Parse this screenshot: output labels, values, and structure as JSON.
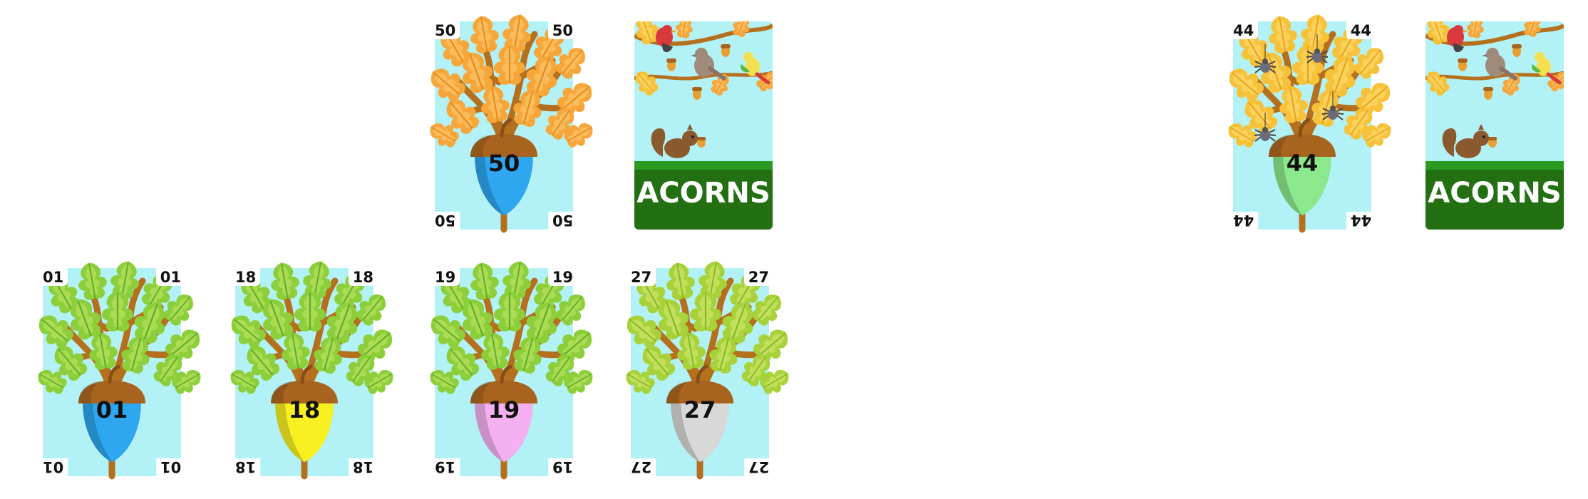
{
  "cards": [
    {
      "id": "50",
      "label": "50",
      "cap_color": "#2ea6f0",
      "leaf": "orange"
    },
    {
      "id": "44",
      "label": "44",
      "cap_color": "#8ce88c",
      "leaf": "gold"
    },
    {
      "id": "01",
      "label": "01",
      "cap_color": "#2ea6f0",
      "leaf": "green"
    },
    {
      "id": "18",
      "label": "18",
      "cap_color": "#f8f020",
      "leaf": "green"
    },
    {
      "id": "19",
      "label": "19",
      "cap_color": "#f4b0f0",
      "leaf": "green"
    },
    {
      "id": "27",
      "label": "27",
      "cap_color": "#d8d8d8",
      "leaf": "lime"
    }
  ],
  "deck_back": {
    "title": "ACORNS"
  },
  "icons": [
    "oak-tree-icon",
    "acorn-icon",
    "squirrel-icon",
    "bird-icon",
    "spider-icon"
  ]
}
